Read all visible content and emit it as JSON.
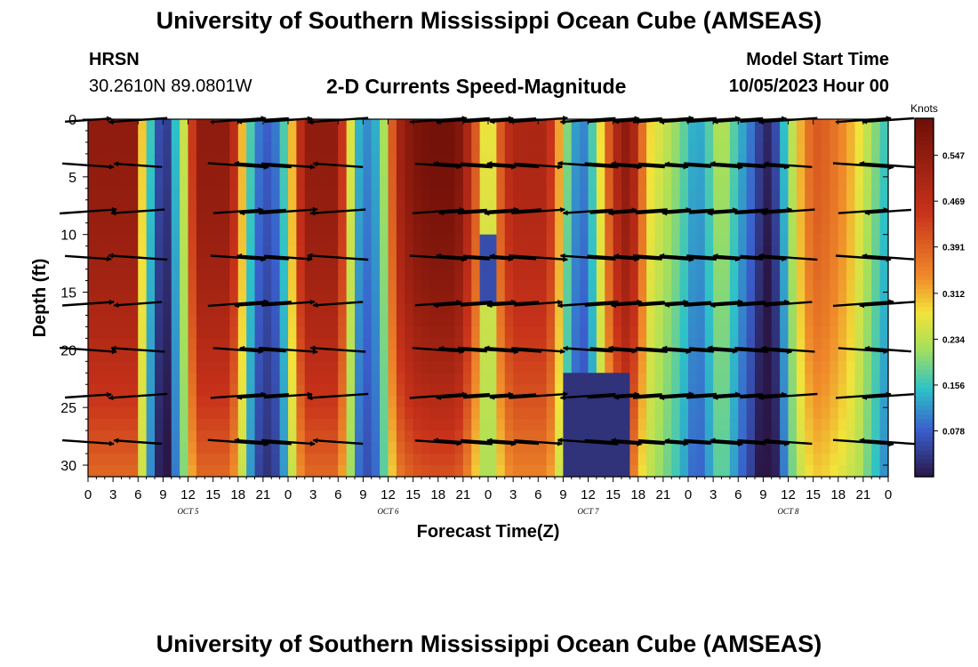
{
  "header": {
    "title": "University of Southern Mississippi Ocean Cube (AMSEAS)",
    "station": "HRSN",
    "coords": "30.2610N  89.0801W",
    "chart_title": "2-D Currents Speed-Magnitude",
    "model_start_label": "Model Start Time",
    "model_start_value": "10/05/2023 Hour 00"
  },
  "footer": {
    "title": "University of Southern Mississippi Ocean Cube (AMSEAS)"
  },
  "colors": {
    "lowest": "#2a1748",
    "low": "#3a5fcd",
    "mid": "#2ec2c8",
    "green": "#a8e05a",
    "yellow": "#f2e33a",
    "orange": "#f08c2a",
    "red": "#c8321a",
    "darkred": "#6e0f08"
  },
  "chart_data": {
    "type": "heatmap",
    "title": "2-D Currents Speed-Magnitude",
    "xlabel": "Forecast Time(Z)",
    "ylabel": "Depth (ft)",
    "x_range_hours": [
      0,
      96
    ],
    "y_range_ft": [
      0,
      31
    ],
    "x_tick_labels": [
      "0",
      "3",
      "6",
      "9",
      "12",
      "15",
      "18",
      "21",
      "0",
      "3",
      "6",
      "9",
      "12",
      "15",
      "18",
      "21",
      "0",
      "3",
      "6",
      "9",
      "12",
      "15",
      "18",
      "21",
      "0",
      "3",
      "6",
      "9",
      "12",
      "15",
      "18",
      "21",
      "0"
    ],
    "y_ticks": [
      0,
      5,
      10,
      15,
      20,
      25,
      30
    ],
    "date_labels": [
      {
        "text": "OCT  5",
        "hour": 12
      },
      {
        "text": "OCT  6",
        "hour": 36
      },
      {
        "text": "OCT  7",
        "hour": 60
      },
      {
        "text": "OCT  8",
        "hour": 84
      }
    ],
    "colorbar": {
      "unit": "Knots",
      "range": [
        0.0,
        0.61
      ],
      "ticks": [
        "0.547",
        "0.469",
        "0.391",
        "0.312",
        "0.234",
        "0.156",
        "0.078"
      ],
      "tick_values": [
        0.547,
        0.469,
        0.391,
        0.312,
        0.234,
        0.156,
        0.078
      ]
    },
    "speed_column_profile": {
      "hours": [
        0,
        0.5,
        5.8,
        6.5,
        7.5,
        8.3,
        9,
        9.8,
        10.5,
        11.5,
        12.3,
        13,
        17,
        18,
        19,
        20,
        21,
        22,
        23,
        24,
        25,
        26,
        30,
        31,
        32,
        33,
        35,
        36,
        37,
        39,
        41,
        44,
        45,
        47,
        48,
        49,
        50,
        51,
        55,
        56,
        57,
        58,
        59,
        60,
        61,
        62,
        64,
        65,
        66,
        67,
        71,
        72,
        73,
        74,
        75,
        76,
        77,
        78,
        80,
        81,
        82,
        83,
        84,
        85,
        86,
        87,
        88,
        90,
        92,
        94,
        95,
        96
      ],
      "surface_knots": [
        0.5,
        0.55,
        0.55,
        0.3,
        0.16,
        0.08,
        0.02,
        0.06,
        0.15,
        0.25,
        0.4,
        0.55,
        0.55,
        0.4,
        0.22,
        0.12,
        0.08,
        0.08,
        0.12,
        0.22,
        0.4,
        0.55,
        0.55,
        0.35,
        0.18,
        0.1,
        0.15,
        0.3,
        0.5,
        0.58,
        0.6,
        0.6,
        0.55,
        0.35,
        0.2,
        0.35,
        0.45,
        0.5,
        0.5,
        0.4,
        0.25,
        0.15,
        0.1,
        0.12,
        0.22,
        0.35,
        0.55,
        0.55,
        0.45,
        0.3,
        0.2,
        0.16,
        0.12,
        0.15,
        0.2,
        0.25,
        0.2,
        0.15,
        0.08,
        0.02,
        0.02,
        0.1,
        0.2,
        0.28,
        0.35,
        0.4,
        0.4,
        0.36,
        0.3,
        0.22,
        0.18,
        0.15
      ]
    },
    "vector_rows_depth_ft": [
      0,
      4,
      8,
      12,
      16,
      20,
      24,
      28
    ],
    "vector_columns_hours": [
      0,
      6,
      18,
      21,
      24,
      30,
      42,
      45,
      48,
      51,
      54,
      60,
      63,
      66,
      69,
      72,
      75,
      78,
      81,
      84,
      93,
      96
    ]
  }
}
